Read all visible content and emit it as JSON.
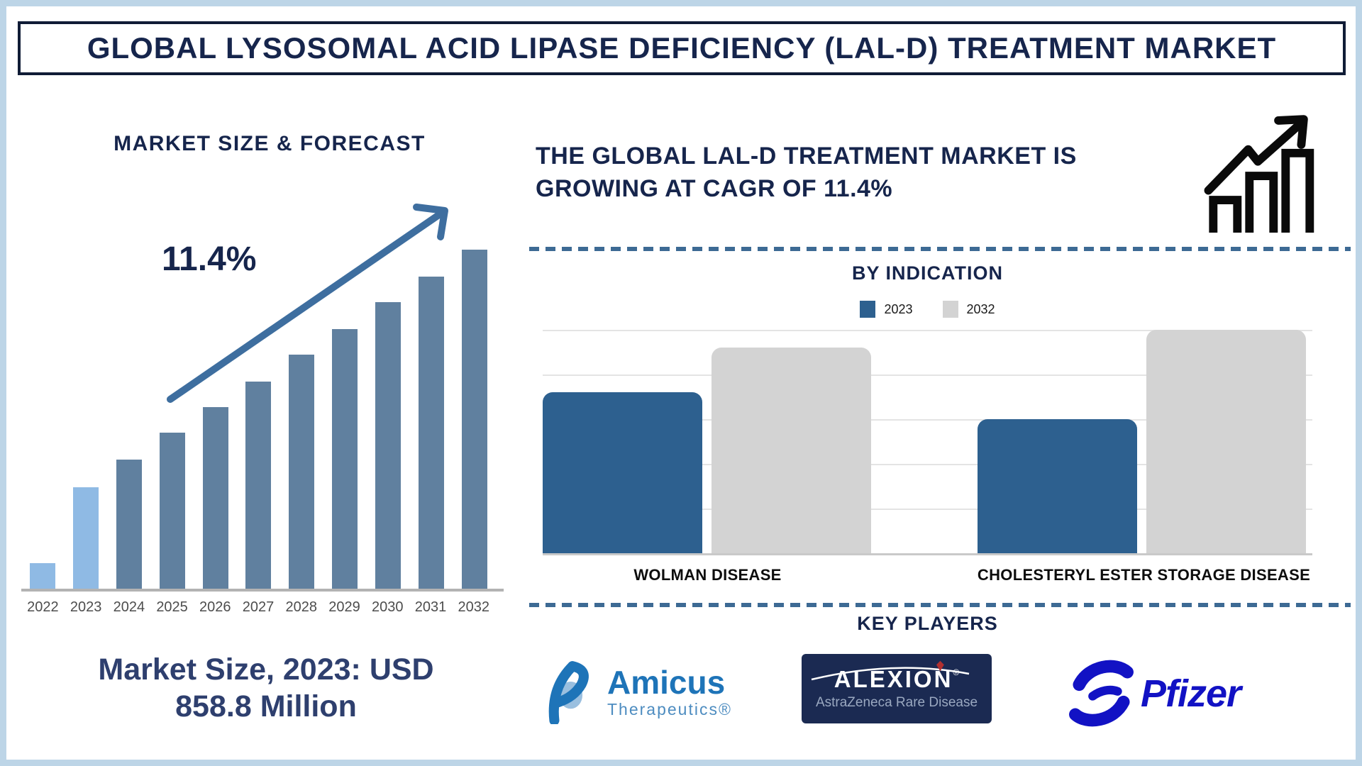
{
  "title": "GLOBAL LYSOSOMAL ACID LIPASE DEFICIENCY (LAL-D) TREATMENT MARKET",
  "colors": {
    "navy_text": "#16254c",
    "frame_light_blue": "#bdd5e7",
    "bar_light_blue": "#8fbae4",
    "bar_slate": "#60809f",
    "arrow_steel": "#3e6e9f",
    "dashed_separator": "#3d6a94",
    "indication_2023_bar": "#2d608f",
    "indication_2032_bar": "#d3d3d3",
    "axis_gray": "#b3b3b3",
    "year_label_gray": "#4d4d4d",
    "category_label_black": "#0d0d0d",
    "amicus_blue": "#1e74b8",
    "alexion_navy": "#1b2a52",
    "alexion_red": "#b03030",
    "pfizer_blue": "#1212c4",
    "growth_icon_black": "#0a0a0a"
  },
  "left_panel": {
    "section_title": "MARKET SIZE & FORECAST",
    "cagr_annotation": "11.4%",
    "callout_line1": "Market Size, 2023: USD",
    "callout_line2": "858.8 Million"
  },
  "right_panel": {
    "headline_line1": "THE GLOBAL LAL-D TREATMENT MARKET IS",
    "headline_line2": "GROWING AT CAGR OF 11.4%",
    "by_indication_title": "BY INDICATION",
    "key_players_title": "KEY PLAYERS",
    "players": [
      {
        "name": "Amicus Therapeutics",
        "text": "Amicus",
        "subtext": "Therapeutics®"
      },
      {
        "name": "Alexion AstraZeneca Rare Disease",
        "text": "ALEXION",
        "reg": "®",
        "subtext": "AstraZeneca Rare Disease"
      },
      {
        "name": "Pfizer",
        "text": "Pfizer"
      }
    ]
  },
  "chart_data": [
    {
      "id": "market_size_forecast",
      "type": "bar",
      "title": "MARKET SIZE & FORECAST",
      "categories": [
        "2022",
        "2023",
        "2024",
        "2025",
        "2026",
        "2027",
        "2028",
        "2029",
        "2030",
        "2031",
        "2032"
      ],
      "values_relative_pct": [
        7.5,
        30,
        38,
        46,
        53.5,
        61,
        69,
        76.5,
        84.5,
        92,
        100
      ],
      "bar_color_keys": [
        "light",
        "light",
        "slate",
        "slate",
        "slate",
        "slate",
        "slate",
        "slate",
        "slate",
        "slate",
        "slate"
      ],
      "annotation": "11.4%",
      "cagr_pct": 11.4,
      "known_value": {
        "year": "2023",
        "value_usd_million": 858.8
      },
      "ylabel": "",
      "xlabel": "",
      "grid": false,
      "note": "no numeric y-axis shown; bar heights are relative (2032 = 100%)"
    },
    {
      "id": "by_indication",
      "type": "grouped-bar",
      "title": "BY INDICATION",
      "categories": [
        "WOLMAN DISEASE",
        "CHOLESTERYL ESTER STORAGE DISEASE"
      ],
      "series": [
        {
          "name": "2023",
          "color": "#2d608f",
          "values_relative": [
            3.6,
            3.0
          ]
        },
        {
          "name": "2032",
          "color": "#d3d3d3",
          "values_relative": [
            4.6,
            5.0
          ]
        }
      ],
      "ylim": [
        0,
        5
      ],
      "grid": true,
      "legend_position": "top-center",
      "note": "no numeric axis shown; values estimated in gridline units (5 gridline intervals)"
    }
  ]
}
